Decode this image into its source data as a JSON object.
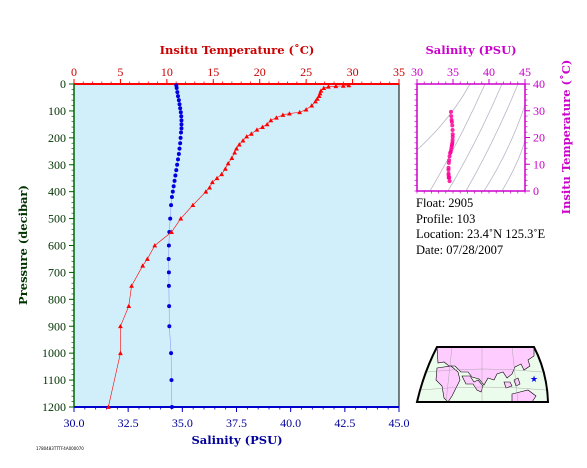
{
  "chart_data": [
    {
      "type": "line",
      "title": "",
      "top_axis_label": "Insitu Temperature (˚C)",
      "bottom_axis_label": "Salinity (PSU)",
      "left_axis_label": "Pressure (decibar)",
      "temperature_axis": {
        "range": [
          0,
          35
        ],
        "ticks": [
          "0",
          "5",
          "10",
          "15",
          "20",
          "25",
          "30",
          "35"
        ]
      },
      "salinity_axis": {
        "range": [
          30,
          45
        ],
        "ticks": [
          "30.0",
          "32.5",
          "35.0",
          "37.5",
          "40.0",
          "42.5",
          "45.0"
        ]
      },
      "pressure_axis": {
        "range": [
          0,
          1200
        ],
        "reversed": true,
        "ticks": [
          "0",
          "100",
          "200",
          "300",
          "400",
          "500",
          "600",
          "700",
          "800",
          "900",
          "1000",
          "1100",
          "1200"
        ]
      },
      "series": [
        {
          "variable": "temperature",
          "color": "#ff0000",
          "marker": "triangle",
          "points": [
            [
              29.6,
              5
            ],
            [
              29.0,
              7
            ],
            [
              28.2,
              8
            ],
            [
              27.4,
              10
            ],
            [
              26.9,
              15
            ],
            [
              26.6,
              25
            ],
            [
              26.5,
              35
            ],
            [
              26.4,
              45
            ],
            [
              26.2,
              55
            ],
            [
              26.0,
              65
            ],
            [
              25.6,
              80
            ],
            [
              25.0,
              95
            ],
            [
              24.3,
              105
            ],
            [
              23.2,
              110
            ],
            [
              22.5,
              115
            ],
            [
              21.8,
              125
            ],
            [
              21.2,
              135
            ],
            [
              20.8,
              150
            ],
            [
              20.3,
              160
            ],
            [
              19.7,
              170
            ],
            [
              19.1,
              185
            ],
            [
              18.6,
              195
            ],
            [
              18.2,
              210
            ],
            [
              17.8,
              225
            ],
            [
              17.5,
              240
            ],
            [
              17.3,
              255
            ],
            [
              17.0,
              275
            ],
            [
              16.6,
              295
            ],
            [
              16.3,
              315
            ],
            [
              15.9,
              335
            ],
            [
              15.4,
              350
            ],
            [
              14.9,
              365
            ],
            [
              14.6,
              385
            ],
            [
              14.2,
              400
            ],
            [
              12.8,
              450
            ],
            [
              11.5,
              500
            ],
            [
              10.5,
              550
            ],
            [
              8.7,
              600
            ],
            [
              7.9,
              650
            ],
            [
              7.4,
              675
            ],
            [
              6.2,
              750
            ],
            [
              5.9,
              825
            ],
            [
              5.0,
              900
            ],
            [
              5.0,
              1000
            ],
            [
              3.7,
              1200
            ]
          ]
        },
        {
          "variable": "salinity",
          "color": "#0000dd",
          "marker": "circle",
          "points": [
            [
              34.72,
              5
            ],
            [
              34.74,
              15
            ],
            [
              34.77,
              30
            ],
            [
              34.8,
              45
            ],
            [
              34.84,
              60
            ],
            [
              34.87,
              75
            ],
            [
              34.9,
              90
            ],
            [
              34.93,
              105
            ],
            [
              34.95,
              120
            ],
            [
              34.96,
              135
            ],
            [
              34.96,
              150
            ],
            [
              34.96,
              165
            ],
            [
              34.94,
              180
            ],
            [
              34.92,
              200
            ],
            [
              34.9,
              220
            ],
            [
              34.87,
              240
            ],
            [
              34.84,
              260
            ],
            [
              34.8,
              280
            ],
            [
              34.76,
              300
            ],
            [
              34.72,
              320
            ],
            [
              34.68,
              340
            ],
            [
              34.64,
              360
            ],
            [
              34.6,
              380
            ],
            [
              34.56,
              400
            ],
            [
              34.52,
              420
            ],
            [
              34.48,
              450
            ],
            [
              34.44,
              500
            ],
            [
              34.4,
              550
            ],
            [
              34.38,
              600
            ],
            [
              34.37,
              650
            ],
            [
              34.38,
              700
            ],
            [
              34.38,
              750
            ],
            [
              34.39,
              825
            ],
            [
              34.4,
              900
            ],
            [
              34.48,
              1000
            ],
            [
              34.5,
              1100
            ],
            [
              34.52,
              1200
            ]
          ]
        }
      ]
    },
    {
      "type": "scatter",
      "title": "Salinity (PSU)",
      "ylabel": "Insitu Temperature (˚C)",
      "xlim": [
        30,
        45
      ],
      "ylim": [
        0,
        40
      ],
      "x_ticks": [
        "30",
        "35",
        "40",
        "45"
      ],
      "y_ticks": [
        "0",
        "10",
        "20",
        "30",
        "40"
      ],
      "color": "#ff0099",
      "background_contours": "grey density isopleths",
      "points": [
        [
          34.72,
          29.6
        ],
        [
          34.76,
          28.0
        ],
        [
          34.8,
          26.6
        ],
        [
          34.85,
          25.8
        ],
        [
          34.9,
          24.5
        ],
        [
          34.94,
          22.8
        ],
        [
          34.96,
          21.2
        ],
        [
          34.96,
          20.3
        ],
        [
          34.94,
          19.1
        ],
        [
          34.92,
          18.2
        ],
        [
          34.88,
          17.5
        ],
        [
          34.84,
          17.0
        ],
        [
          34.8,
          16.3
        ],
        [
          34.74,
          15.4
        ],
        [
          34.68,
          14.6
        ],
        [
          34.6,
          14.2
        ],
        [
          34.52,
          13.0
        ],
        [
          34.46,
          11.5
        ],
        [
          34.42,
          10.5
        ],
        [
          34.38,
          8.7
        ],
        [
          34.37,
          7.9
        ],
        [
          34.38,
          6.5
        ],
        [
          34.39,
          5.9
        ],
        [
          34.4,
          5.0
        ],
        [
          34.48,
          5.0
        ],
        [
          34.52,
          3.7
        ]
      ]
    },
    {
      "type": "map",
      "marker": {
        "lat": 23.4,
        "lon": 125.3,
        "color": "#0000ff",
        "symbol": "star"
      }
    }
  ],
  "info": {
    "float_label": "Float:",
    "float_value": "2905",
    "profile_label": "Profile:",
    "profile_value": "103",
    "location_label": "Location:",
    "location_value": "23.4˚N  125.3˚E",
    "date_label": "Date:",
    "date_value": "07/28/2007"
  },
  "footer_tag": "1780483TTTF4A000070",
  "colors": {
    "plot_bg": "#d1effa",
    "temperature": "#ff0000",
    "salinity": "#0000dd",
    "ts_axis": "#cc00cc",
    "left_axis": "#006600",
    "bottom_axis": "#000099",
    "land": "#ffccff",
    "ocean": "#ecfcec"
  }
}
